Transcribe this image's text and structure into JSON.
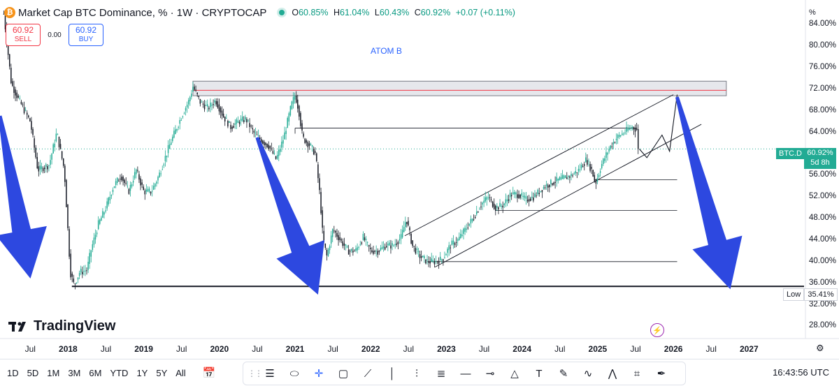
{
  "header": {
    "symbol_badge": "₿",
    "title": "Market Cap BTC Dominance, % · 1W · CRYPTOCAP",
    "ohlc": [
      {
        "label": "O",
        "value": "60.85%"
      },
      {
        "label": "H",
        "value": "61.04%"
      },
      {
        "label": "L",
        "value": "60.43%"
      },
      {
        "label": "C",
        "value": "60.92%"
      }
    ],
    "change": "+0.07 (+0.11%)"
  },
  "trade": {
    "sell_price": "60.92",
    "sell_label": "SELL",
    "spread": "0.00",
    "buy_price": "60.92",
    "buy_label": "BUY"
  },
  "annotation_text": "ATOM B",
  "brand": "TradingView",
  "price_tag": {
    "symbol": "BTC.D",
    "value": "60.92%",
    "countdown": "5d 8h"
  },
  "low_tag": {
    "label": "Low",
    "value": "35.41%"
  },
  "axis_unit": "%",
  "bottom": {
    "ranges": [
      "1D",
      "5D",
      "1M",
      "3M",
      "6M",
      "YTD",
      "1Y",
      "5Y",
      "All"
    ],
    "clock": "16:43:56 UTC"
  },
  "toolbar_icons": [
    "lines-icon",
    "ellipse-icon",
    "crosshair-icon",
    "rectangle-icon",
    "vertical-line-icon",
    "bars-pattern-icon",
    "fib-icon",
    "horizontal-ray-icon",
    "info-line-icon",
    "triangle-pattern-icon",
    "text-icon",
    "brush-icon",
    "path-icon",
    "pattern-icon",
    "measure-icon",
    "pen-icon"
  ],
  "colors": {
    "up": "#22ab94",
    "down": "#131722",
    "arrow": "#2d48e0",
    "resistance_zone": "#d1d4dc",
    "resistance_line": "#f23645",
    "accent": "#2962ff"
  },
  "chart_data": {
    "type": "candlestick",
    "title": "Market Cap BTC Dominance, % · 1W · CRYPTOCAP",
    "y_unit": "%",
    "ylim": [
      26.5,
      86.5
    ],
    "y_ticks": [
      28,
      32,
      36,
      40,
      44,
      48,
      52,
      56,
      60,
      64,
      68,
      72,
      76,
      80,
      84
    ],
    "x_ticks": [
      {
        "label": "Jul",
        "t": 2017.5,
        "year": false
      },
      {
        "label": "2018",
        "t": 2018.0,
        "year": true
      },
      {
        "label": "Jul",
        "t": 2018.5,
        "year": false
      },
      {
        "label": "2019",
        "t": 2019.0,
        "year": true
      },
      {
        "label": "Jul",
        "t": 2019.5,
        "year": false
      },
      {
        "label": "2020",
        "t": 2020.0,
        "year": true
      },
      {
        "label": "Jul",
        "t": 2020.5,
        "year": false
      },
      {
        "label": "2021",
        "t": 2021.0,
        "year": true
      },
      {
        "label": "Jul",
        "t": 2021.5,
        "year": false
      },
      {
        "label": "2022",
        "t": 2022.0,
        "year": true
      },
      {
        "label": "Jul",
        "t": 2022.5,
        "year": false
      },
      {
        "label": "2023",
        "t": 2023.0,
        "year": true
      },
      {
        "label": "Jul",
        "t": 2023.5,
        "year": false
      },
      {
        "label": "2024",
        "t": 2024.0,
        "year": true
      },
      {
        "label": "Jul",
        "t": 2024.5,
        "year": false
      },
      {
        "label": "2025",
        "t": 2025.0,
        "year": true
      },
      {
        "label": "Jul",
        "t": 2025.5,
        "year": false
      },
      {
        "label": "2026",
        "t": 2026.0,
        "year": true
      },
      {
        "label": "Jul",
        "t": 2026.5,
        "year": false
      },
      {
        "label": "2027",
        "t": 2027.0,
        "year": true
      }
    ],
    "xlim": [
      2017.1,
      2027.45
    ],
    "series_path": [
      [
        2017.15,
        86
      ],
      [
        2017.25,
        73
      ],
      [
        2017.35,
        70
      ],
      [
        2017.5,
        66
      ],
      [
        2017.6,
        57
      ],
      [
        2017.75,
        58
      ],
      [
        2017.85,
        64
      ],
      [
        2017.95,
        57
      ],
      [
        2018.03,
        38
      ],
      [
        2018.08,
        35.6
      ],
      [
        2018.15,
        38
      ],
      [
        2018.25,
        38.5
      ],
      [
        2018.3,
        42
      ],
      [
        2018.4,
        47
      ],
      [
        2018.5,
        50
      ],
      [
        2018.6,
        54
      ],
      [
        2018.7,
        56
      ],
      [
        2018.8,
        53
      ],
      [
        2018.9,
        57
      ],
      [
        2019.0,
        53
      ],
      [
        2019.1,
        53
      ],
      [
        2019.2,
        56
      ],
      [
        2019.35,
        62
      ],
      [
        2019.5,
        67
      ],
      [
        2019.6,
        70
      ],
      [
        2019.65,
        72.5
      ],
      [
        2019.75,
        69.5
      ],
      [
        2019.85,
        68.5
      ],
      [
        2019.95,
        70
      ],
      [
        2020.05,
        67
      ],
      [
        2020.15,
        65
      ],
      [
        2020.25,
        66
      ],
      [
        2020.35,
        66.5
      ],
      [
        2020.45,
        64
      ],
      [
        2020.55,
        62.5
      ],
      [
        2020.65,
        61.5
      ],
      [
        2020.75,
        59
      ],
      [
        2020.85,
        63
      ],
      [
        2020.95,
        69
      ],
      [
        2021.0,
        71
      ],
      [
        2021.05,
        68
      ],
      [
        2021.1,
        63
      ],
      [
        2021.2,
        61.5
      ],
      [
        2021.27,
        60
      ],
      [
        2021.33,
        52
      ],
      [
        2021.37,
        44
      ],
      [
        2021.42,
        41
      ],
      [
        2021.5,
        46
      ],
      [
        2021.6,
        44
      ],
      [
        2021.7,
        42
      ],
      [
        2021.8,
        42
      ],
      [
        2021.9,
        44.5
      ],
      [
        2022.0,
        42
      ],
      [
        2022.1,
        42
      ],
      [
        2022.2,
        43
      ],
      [
        2022.3,
        43
      ],
      [
        2022.4,
        44.5
      ],
      [
        2022.47,
        48
      ],
      [
        2022.55,
        43
      ],
      [
        2022.65,
        41
      ],
      [
        2022.75,
        40
      ],
      [
        2022.85,
        40
      ],
      [
        2022.95,
        40.5
      ],
      [
        2023.05,
        43
      ],
      [
        2023.15,
        44
      ],
      [
        2023.25,
        46
      ],
      [
        2023.35,
        48
      ],
      [
        2023.45,
        50.5
      ],
      [
        2023.55,
        52
      ],
      [
        2023.65,
        50
      ],
      [
        2023.75,
        50.5
      ],
      [
        2023.85,
        52.5
      ],
      [
        2023.95,
        52.5
      ],
      [
        2024.05,
        51.5
      ],
      [
        2024.15,
        52
      ],
      [
        2024.3,
        54
      ],
      [
        2024.45,
        55
      ],
      [
        2024.55,
        55.5
      ],
      [
        2024.65,
        56
      ],
      [
        2024.75,
        57
      ],
      [
        2024.85,
        59
      ],
      [
        2024.92,
        57
      ],
      [
        2024.97,
        54.5
      ],
      [
        2025.05,
        58
      ],
      [
        2025.15,
        61
      ],
      [
        2025.25,
        63
      ],
      [
        2025.35,
        64
      ],
      [
        2025.45,
        65
      ],
      [
        2025.52,
        64.5
      ],
      [
        2025.55,
        60.92
      ]
    ],
    "last_value": 60.92,
    "overlays": {
      "resistance_zone": {
        "x1": 2019.65,
        "x2": 2026.7,
        "y1": 70.8,
        "y2": 73.5
      },
      "resistance_line": {
        "y": 71.8
      },
      "support_line": {
        "y": 35.41
      },
      "channel_upper": [
        [
          2022.45,
          44.8
        ],
        [
          2026.0,
          71
        ]
      ],
      "channel_lower": [
        [
          2022.85,
          39
        ],
        [
          2026.37,
          65.5
        ]
      ],
      "horizontal_rays": [
        {
          "x1": 2021.0,
          "x2": 2025.52,
          "y": 64.8
        },
        {
          "x1": 2024.95,
          "x2": 2026.05,
          "y": 55.2
        },
        {
          "x1": 2023.65,
          "x2": 2026.05,
          "y": 49.5
        },
        {
          "x1": 2022.75,
          "x2": 2026.05,
          "y": 40
        }
      ],
      "projection_path": [
        [
          2025.55,
          60.92
        ],
        [
          2025.65,
          59.3
        ],
        [
          2025.85,
          63.5
        ],
        [
          2025.95,
          60.5
        ],
        [
          2026.05,
          71
        ]
      ],
      "arrows": [
        {
          "from": [
            2017.1,
            67
          ],
          "to": [
            2017.5,
            37
          ]
        },
        {
          "from": [
            2020.5,
            63
          ],
          "to": [
            2021.3,
            34
          ]
        },
        {
          "from": [
            2026.05,
            70.5
          ],
          "to": [
            2026.75,
            35
          ]
        }
      ]
    }
  }
}
